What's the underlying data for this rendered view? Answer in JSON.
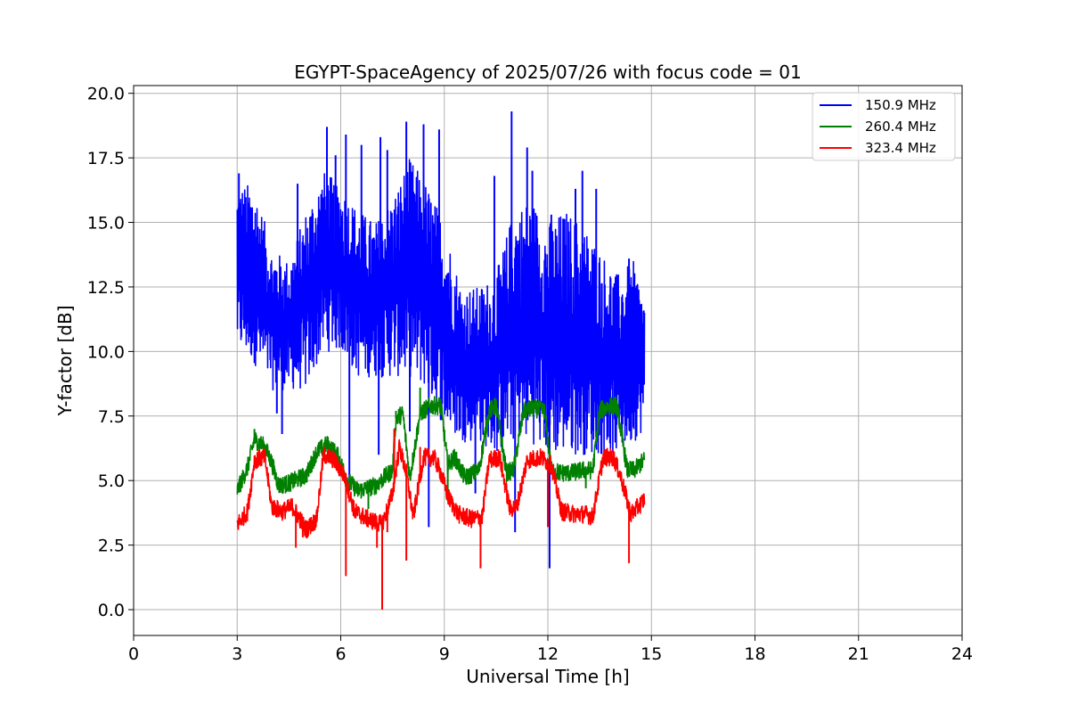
{
  "chart_data": {
    "type": "line",
    "title": "EGYPT-SpaceAgency of 2025/07/26 with focus code = 01",
    "xlabel": "Universal Time [h]",
    "ylabel": "Y-factor [dB]",
    "xlim": [
      0,
      24
    ],
    "ylim": [
      -1.0,
      20.3
    ],
    "xticks": [
      0,
      3,
      6,
      9,
      12,
      15,
      18,
      21,
      24
    ],
    "xtick_labels": [
      "0",
      "3",
      "6",
      "9",
      "12",
      "15",
      "18",
      "21",
      "24"
    ],
    "yticks": [
      0.0,
      2.5,
      5.0,
      7.5,
      10.0,
      12.5,
      15.0,
      17.5,
      20.0
    ],
    "ytick_labels": [
      "0.0",
      "2.5",
      "5.0",
      "7.5",
      "10.0",
      "12.5",
      "15.0",
      "17.5",
      "20.0"
    ],
    "grid": true,
    "legend_position": "top-right",
    "series": [
      {
        "name": "150.9 MHz",
        "color": "#0000ff",
        "x": [
          3.0,
          3.5,
          4.0,
          4.5,
          5.0,
          5.5,
          6.0,
          6.5,
          7.0,
          7.5,
          8.0,
          8.5,
          9.0,
          9.5,
          10.0,
          10.5,
          11.0,
          11.5,
          12.0,
          12.5,
          13.0,
          13.5,
          14.0,
          14.5,
          14.8
        ],
        "upper": [
          16.5,
          16.5,
          14.0,
          13.5,
          15.5,
          17.0,
          16.5,
          15.5,
          15.0,
          16.0,
          17.5,
          16.5,
          15.0,
          12.5,
          12.5,
          13.0,
          15.5,
          16.0,
          15.0,
          15.5,
          15.0,
          14.0,
          13.0,
          13.5,
          12.0
        ],
        "lower": [
          10.0,
          9.5,
          8.5,
          8.5,
          8.5,
          10.0,
          10.0,
          9.0,
          9.0,
          9.0,
          9.0,
          8.5,
          7.0,
          6.5,
          6.5,
          6.0,
          6.5,
          6.5,
          6.0,
          6.0,
          6.0,
          6.0,
          6.0,
          6.5,
          7.0
        ],
        "spikes": [
          [
            3.05,
            16.9
          ],
          [
            4.75,
            16.5
          ],
          [
            5.6,
            18.7
          ],
          [
            5.85,
            17.6
          ],
          [
            6.15,
            18.4
          ],
          [
            6.6,
            18.0
          ],
          [
            7.15,
            18.3
          ],
          [
            7.35,
            17.8
          ],
          [
            7.9,
            18.9
          ],
          [
            8.4,
            18.8
          ],
          [
            8.85,
            18.6
          ],
          [
            10.45,
            16.8
          ],
          [
            10.95,
            19.3
          ],
          [
            11.4,
            17.9
          ],
          [
            11.55,
            17.0
          ],
          [
            12.1,
            15.3
          ],
          [
            12.8,
            16.3
          ],
          [
            13.0,
            17.0
          ],
          [
            13.4,
            16.3
          ],
          [
            14.35,
            13.6
          ],
          [
            4.3,
            6.8
          ],
          [
            4.15,
            7.6
          ],
          [
            7.1,
            6.0
          ],
          [
            8.0,
            6.9
          ],
          [
            11.05,
            3.0
          ],
          [
            12.05,
            1.6
          ],
          [
            6.25,
            4.6
          ],
          [
            8.55,
            3.2
          ],
          [
            9.9,
            4.5
          ]
        ]
      },
      {
        "name": "260.4 MHz",
        "color": "#008000",
        "x": [
          3.0,
          3.3,
          3.5,
          3.8,
          4.0,
          4.2,
          4.5,
          5.0,
          5.3,
          5.6,
          5.9,
          6.2,
          6.5,
          7.0,
          7.5,
          7.6,
          7.8,
          8.0,
          8.3,
          8.6,
          8.9,
          9.1,
          9.3,
          9.6,
          10.0,
          10.3,
          10.5,
          10.8,
          11.0,
          11.3,
          11.6,
          11.9,
          12.1,
          12.4,
          12.7,
          13.0,
          13.3,
          13.5,
          13.8,
          14.0,
          14.3,
          14.5,
          14.8
        ],
        "y": [
          4.6,
          5.5,
          6.6,
          6.3,
          5.7,
          4.8,
          4.9,
          5.2,
          6.1,
          6.4,
          6.0,
          5.0,
          4.6,
          4.8,
          5.4,
          7.4,
          7.6,
          5.1,
          7.6,
          7.9,
          7.9,
          5.6,
          5.9,
          5.1,
          5.4,
          7.7,
          7.9,
          5.3,
          5.4,
          7.7,
          7.8,
          7.7,
          5.4,
          5.3,
          5.3,
          5.4,
          5.4,
          7.7,
          7.9,
          7.9,
          5.4,
          5.4,
          5.8
        ],
        "spikes": [
          [
            3.5,
            7.0
          ],
          [
            7.6,
            7.7
          ],
          [
            8.3,
            8.6
          ],
          [
            9.1,
            4.2
          ],
          [
            10.5,
            8.0
          ],
          [
            6.8,
            3.9
          ],
          [
            13.1,
            4.7
          ]
        ]
      },
      {
        "name": "323.4 MHz",
        "color": "#ff0000",
        "x": [
          3.0,
          3.3,
          3.5,
          3.8,
          4.0,
          4.3,
          4.6,
          5.0,
          5.3,
          5.5,
          5.8,
          6.1,
          6.4,
          6.8,
          7.2,
          7.5,
          7.7,
          7.9,
          8.1,
          8.4,
          8.7,
          8.9,
          9.1,
          9.4,
          9.8,
          10.1,
          10.3,
          10.6,
          10.9,
          11.1,
          11.4,
          11.8,
          12.1,
          12.4,
          12.8,
          13.1,
          13.3,
          13.6,
          13.9,
          14.1,
          14.4,
          14.7,
          14.8
        ],
        "y": [
          3.3,
          3.8,
          5.8,
          5.9,
          4.0,
          3.8,
          4.0,
          3.1,
          3.5,
          6.0,
          5.8,
          5.2,
          3.8,
          3.5,
          3.3,
          4.5,
          6.3,
          5.3,
          3.6,
          5.9,
          5.9,
          5.3,
          4.4,
          3.7,
          3.5,
          3.6,
          5.8,
          5.9,
          3.9,
          4.0,
          5.8,
          5.9,
          5.6,
          3.8,
          3.7,
          3.7,
          3.6,
          5.9,
          5.9,
          5.2,
          3.7,
          4.1,
          4.3
        ],
        "spikes": [
          [
            6.15,
            1.3
          ],
          [
            7.2,
            0.0
          ],
          [
            7.35,
            3.0
          ],
          [
            7.05,
            2.4
          ],
          [
            4.7,
            2.4
          ],
          [
            10.05,
            1.6
          ],
          [
            14.35,
            1.8
          ],
          [
            7.55,
            7.0
          ],
          [
            8.3,
            6.3
          ],
          [
            11.9,
            5.9
          ],
          [
            7.9,
            1.9
          ],
          [
            4.9,
            2.8
          ],
          [
            12.0,
            3.2
          ]
        ]
      }
    ]
  }
}
